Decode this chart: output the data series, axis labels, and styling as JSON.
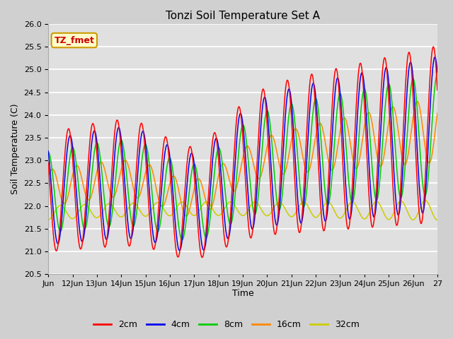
{
  "title": "Tonzi Soil Temperature Set A",
  "xlabel": "Time",
  "ylabel": "Soil Temperature (C)",
  "ylim": [
    20.5,
    26.0
  ],
  "annotation_text": "TZ_fmet",
  "colors": {
    "2cm": "#ff0000",
    "4cm": "#0000ee",
    "8cm": "#00cc00",
    "16cm": "#ff8800",
    "32cm": "#cccc00"
  },
  "legend_labels": [
    "2cm",
    "4cm",
    "8cm",
    "16cm",
    "32cm"
  ],
  "fig_bg": "#d0d0d0",
  "ax_bg": "#e0e0e0",
  "x_tick_labels": [
    "Jun",
    "12Jun",
    "13Jun",
    "14Jun",
    "15Jun",
    "16Jun",
    "17Jun",
    "18Jun",
    "19Jun",
    "20Jun",
    "21Jun",
    "22Jun",
    "23Jun",
    "24Jun",
    "25Jun",
    "26Jun",
    "27"
  ]
}
